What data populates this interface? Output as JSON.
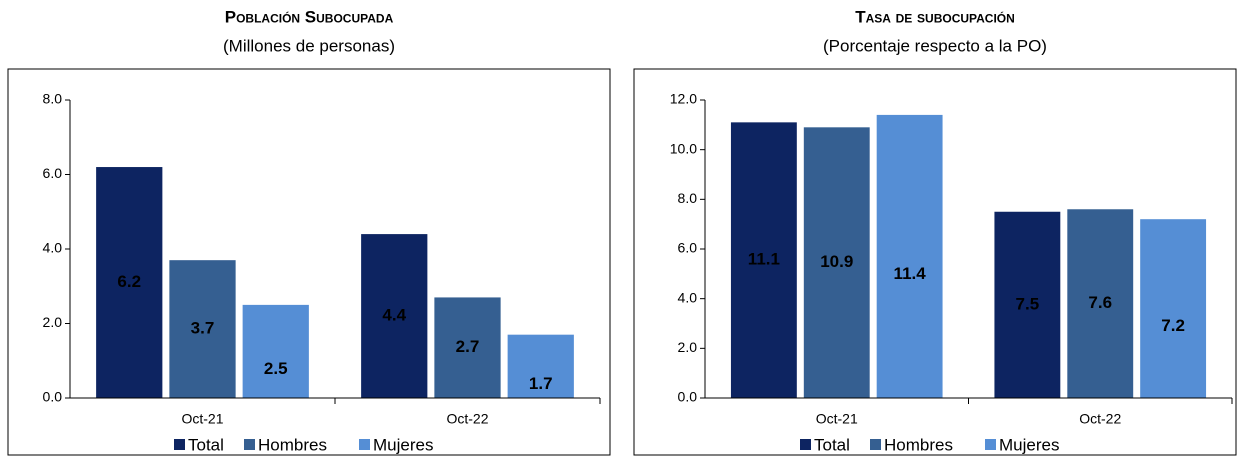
{
  "chart_data": [
    {
      "type": "bar",
      "title": "Población Subocupada",
      "subtitle": "(Millones de personas)",
      "categories": [
        "Oct-21",
        "Oct-22"
      ],
      "series": [
        {
          "name": "Total",
          "color": "#0d2461",
          "values": [
            6.2,
            4.4
          ]
        },
        {
          "name": "Hombres",
          "color": "#355f91",
          "values": [
            3.7,
            2.7
          ]
        },
        {
          "name": "Mujeres",
          "color": "#558ed5",
          "values": [
            2.5,
            1.7
          ]
        }
      ],
      "ylim": [
        0,
        8
      ],
      "yticks": [
        {
          "value": 0,
          "label": "0.0"
        },
        {
          "value": 2,
          "label": "2.0"
        },
        {
          "value": 4,
          "label": "4.0"
        },
        {
          "value": 6,
          "label": "6.0"
        },
        {
          "value": 8,
          "label": "8.0"
        }
      ],
      "grid": false,
      "legend": "bottom"
    },
    {
      "type": "bar",
      "title": "Tasa de subocupación",
      "subtitle": "(Porcentaje respecto a la PO)",
      "categories": [
        "Oct-21",
        "Oct-22"
      ],
      "series": [
        {
          "name": "Total",
          "color": "#0d2461",
          "values": [
            11.1,
            7.5
          ]
        },
        {
          "name": "Hombres",
          "color": "#355f91",
          "values": [
            10.9,
            7.6
          ]
        },
        {
          "name": "Mujeres",
          "color": "#558ed5",
          "values": [
            11.4,
            7.2
          ]
        }
      ],
      "ylim": [
        0,
        12
      ],
      "yticks": [
        {
          "value": 0,
          "label": "0.0"
        },
        {
          "value": 2,
          "label": "2.0"
        },
        {
          "value": 4,
          "label": "4.0"
        },
        {
          "value": 6,
          "label": "6.0"
        },
        {
          "value": 8,
          "label": "8.0"
        },
        {
          "value": 10,
          "label": "10.0"
        },
        {
          "value": 12,
          "label": "12.0"
        }
      ],
      "grid": false,
      "legend": "bottom"
    }
  ]
}
